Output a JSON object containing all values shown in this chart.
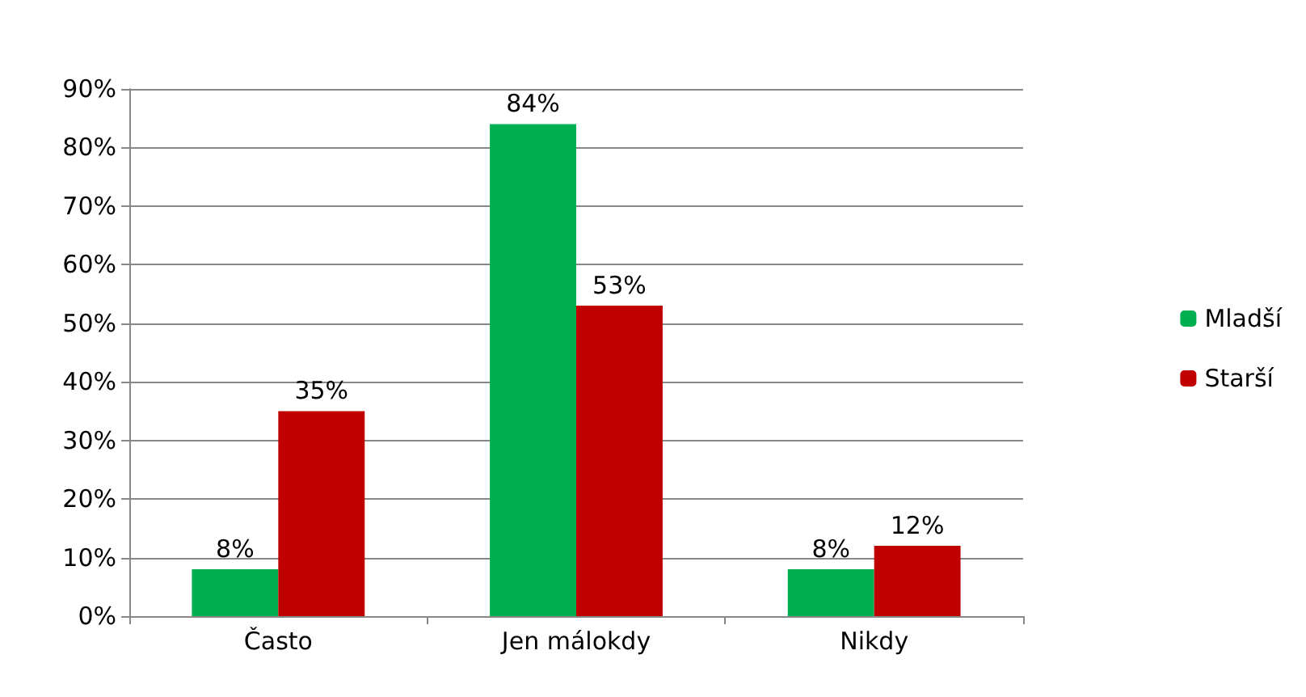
{
  "chart_data": {
    "type": "bar",
    "categories": [
      "Často",
      "Jen málokdy",
      "Nikdy"
    ],
    "series": [
      {
        "name": "Mladší",
        "color": "#00b050",
        "values": [
          8,
          84,
          8
        ],
        "value_labels": [
          "8%",
          "84%",
          "8%"
        ]
      },
      {
        "name": "Starší",
        "color": "#c00000",
        "values": [
          35,
          53,
          12
        ],
        "value_labels": [
          "35%",
          "53%",
          "12%"
        ]
      }
    ],
    "ylim": [
      0,
      90
    ],
    "yticks": [
      {
        "value": 0,
        "label": "0%"
      },
      {
        "value": 10,
        "label": "10%"
      },
      {
        "value": 20,
        "label": "20%"
      },
      {
        "value": 30,
        "label": "30%"
      },
      {
        "value": 40,
        "label": "40%"
      },
      {
        "value": 50,
        "label": "50%"
      },
      {
        "value": 60,
        "label": "60%"
      },
      {
        "value": 70,
        "label": "70%"
      },
      {
        "value": 80,
        "label": "80%"
      },
      {
        "value": 90,
        "label": "90%"
      }
    ],
    "grid": "y",
    "legend": "right"
  }
}
